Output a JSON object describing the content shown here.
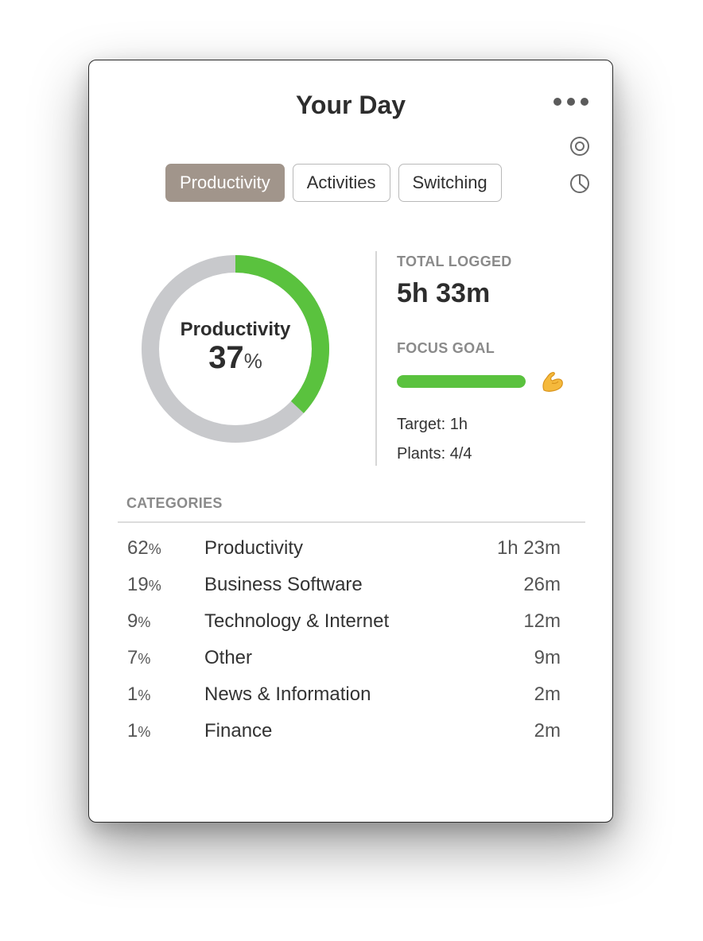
{
  "title": "Your Day",
  "tabs": [
    {
      "label": "Productivity",
      "active": true
    },
    {
      "label": "Activities",
      "active": false
    },
    {
      "label": "Switching",
      "active": false
    }
  ],
  "icons": {
    "more": "more-dots-icon",
    "target": "target-icon",
    "pie": "pie-chart-icon",
    "muscle": "flexed-biceps-icon"
  },
  "donut": {
    "label": "Productivity",
    "value": "37",
    "unit": "%",
    "fraction": 0.37,
    "color_fill": "#5ac23e",
    "color_track": "#c8c9cc"
  },
  "stats": {
    "total_label": "TOTAL LOGGED",
    "total_value": "5h 33m",
    "focus_label": "FOCUS GOAL",
    "focus_progress": 1.0,
    "target": "Target: 1h",
    "plants": "Plants: 4/4"
  },
  "categories": {
    "heading": "CATEGORIES",
    "rows": [
      {
        "pct": "62",
        "unit": "%",
        "name": "Productivity",
        "time": "1h 23m"
      },
      {
        "pct": "19",
        "unit": "%",
        "name": "Business Software",
        "time": "26m"
      },
      {
        "pct": "9",
        "unit": "%",
        "name": "Technology & Internet",
        "time": "12m"
      },
      {
        "pct": "7",
        "unit": "%",
        "name": "Other",
        "time": "9m"
      },
      {
        "pct": "1",
        "unit": "%",
        "name": "News & Information",
        "time": "2m"
      },
      {
        "pct": "1",
        "unit": "%",
        "name": "Finance",
        "time": "2m"
      }
    ]
  }
}
